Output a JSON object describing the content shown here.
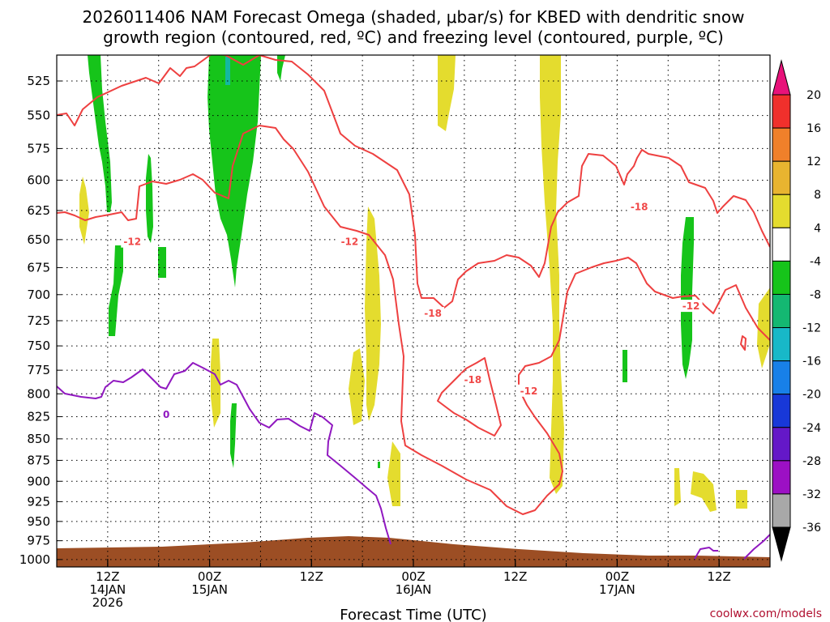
{
  "chart_data": {
    "type": "heatmap",
    "title_line1": "2026011406 NAM Forecast Omega (shaded, μbar/s) for KBED with dendritic snow",
    "title_line2": "growth region (contoured, red, ºC) and freezing level (contoured, purple, ºC)",
    "xlabel": "Forecast Time (UTC)",
    "ylabel": "",
    "x_ticks": [
      {
        "hours": 6,
        "l1": "12Z",
        "l2": "14JAN",
        "l3": "2026"
      },
      {
        "hours": 18,
        "l1": "00Z",
        "l2": "15JAN",
        "l3": ""
      },
      {
        "hours": 30,
        "l1": "12Z",
        "l2": "",
        "l3": ""
      },
      {
        "hours": 42,
        "l1": "00Z",
        "l2": "16JAN",
        "l3": ""
      },
      {
        "hours": 54,
        "l1": "12Z",
        "l2": "",
        "l3": ""
      },
      {
        "hours": 66,
        "l1": "00Z",
        "l2": "17JAN",
        "l3": ""
      },
      {
        "hours": 78,
        "l1": "12Z",
        "l2": "",
        "l3": ""
      }
    ],
    "xlim_hours": [
      0,
      84
    ],
    "y_ticks": [
      525,
      550,
      575,
      600,
      625,
      650,
      675,
      700,
      725,
      750,
      775,
      800,
      825,
      850,
      875,
      900,
      925,
      950,
      975,
      1000
    ],
    "ylim": [
      1010,
      507
    ],
    "grid": true,
    "colorbar": {
      "labels": [
        "20",
        "16",
        "12",
        "8",
        "4",
        "-4",
        "-8",
        "-12",
        "-16",
        "-20",
        "-24",
        "-28",
        "-32",
        "-36"
      ],
      "colors": [
        "#e8127a",
        "#f0302c",
        "#f0802a",
        "#e8b430",
        "#e4dc2e",
        "#ffffff",
        "#16c41a",
        "#14b872",
        "#18b8c8",
        "#1880e8",
        "#1838d8",
        "#6418c8",
        "#9c10c4",
        "#a8a8a8",
        "#000000"
      ]
    },
    "contour_labels": [
      {
        "text": "-12",
        "color": "#f04848",
        "p": 652,
        "t": 8.9
      },
      {
        "text": "-12",
        "color": "#f04848",
        "p": 652,
        "t": 34.5
      },
      {
        "text": "-18",
        "color": "#f04848",
        "p": 718,
        "t": 44.3
      },
      {
        "text": "-18",
        "color": "#f04848",
        "p": 785,
        "t": 49.0
      },
      {
        "text": "-12",
        "color": "#f04848",
        "p": 797,
        "t": 55.6
      },
      {
        "text": "-18",
        "color": "#f04848",
        "p": 622,
        "t": 68.6
      },
      {
        "text": "-12",
        "color": "#f04848",
        "p": 711,
        "t": 74.7
      },
      {
        "text": "0",
        "color": "#9018c0",
        "p": 823,
        "t": 12.9
      }
    ]
  },
  "watermark": "coolwx.com/models"
}
